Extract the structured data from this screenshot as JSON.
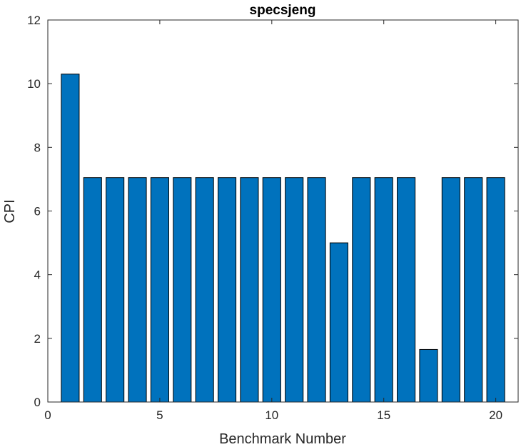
{
  "chart_data": {
    "type": "bar",
    "title": "specsjeng",
    "xlabel": "Benchmark Number",
    "ylabel": "CPI",
    "x": [
      1,
      2,
      3,
      4,
      5,
      6,
      7,
      8,
      9,
      10,
      11,
      12,
      13,
      14,
      15,
      16,
      17,
      18,
      19,
      20
    ],
    "values": [
      10.3,
      7.05,
      7.05,
      7.05,
      7.05,
      7.05,
      7.05,
      7.05,
      7.05,
      7.05,
      7.05,
      7.05,
      5.0,
      7.05,
      7.05,
      7.05,
      1.65,
      7.05,
      7.05,
      7.05
    ],
    "xlim": [
      0,
      21
    ],
    "ylim": [
      0,
      12
    ],
    "xticks": [
      0,
      5,
      10,
      15,
      20
    ],
    "yticks": [
      0,
      2,
      4,
      6,
      8,
      10,
      12
    ],
    "bar_color": "#0072BD",
    "edge_color": "#000000",
    "grid": false,
    "box": true
  }
}
